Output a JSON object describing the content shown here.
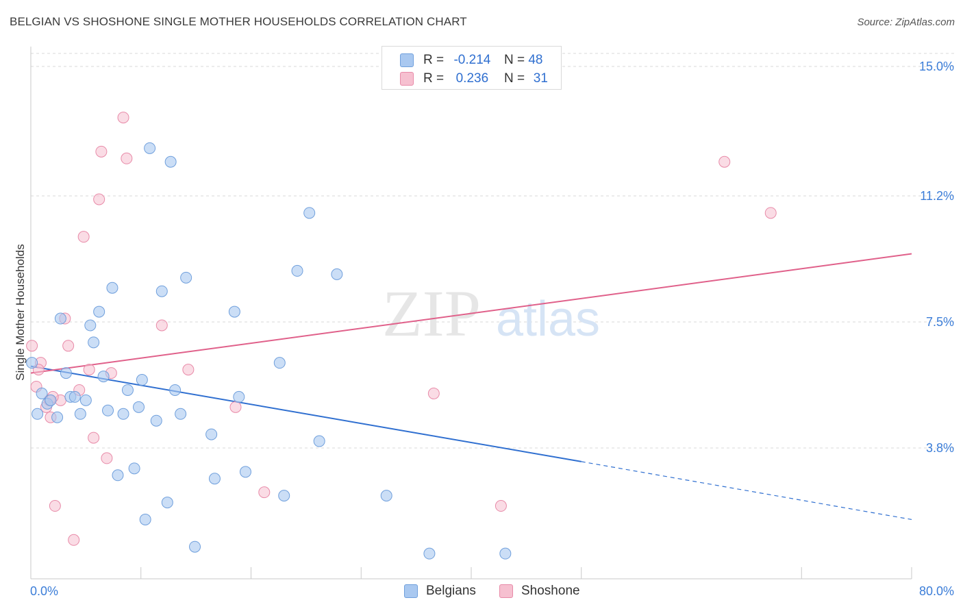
{
  "title": "BELGIAN VS SHOSHONE SINGLE MOTHER HOUSEHOLDS CORRELATION CHART",
  "source": "Source: ZipAtlas.com",
  "watermark": {
    "zip": "ZIP",
    "atlas": "atlas"
  },
  "legend": {
    "rows": [
      {
        "r_label": "R =",
        "r_value": "-0.214",
        "n_label": "N =",
        "n_value": "48"
      },
      {
        "r_label": "R =",
        "r_value": "0.236",
        "n_label": "N =",
        "n_value": "31"
      }
    ]
  },
  "bottom_legend": [
    "Belgians",
    "Shoshone"
  ],
  "colors": {
    "belgians_fill": "#a9c8f0",
    "belgians_stroke": "#6f9fdc",
    "belgians_line": "#2f6fd0",
    "shoshone_fill": "#f6c0d0",
    "shoshone_stroke": "#e88aa8",
    "shoshone_line": "#e0608a",
    "axis_label": "#3b7dd8",
    "grid": "#d8d8d8"
  },
  "chart_data": {
    "type": "scatter",
    "title": "BELGIAN VS SHOSHONE SINGLE MOTHER HOUSEHOLDS CORRELATION CHART",
    "xlabel": "",
    "ylabel": "Single Mother Households",
    "xlim": [
      0,
      80
    ],
    "ylim": [
      0,
      15.5
    ],
    "x_tick_labels": [
      {
        "value": 0,
        "label": "0.0%"
      },
      {
        "value": 80,
        "label": "80.0%"
      }
    ],
    "y_ticks": [
      {
        "value": 3.8,
        "label": "3.8%"
      },
      {
        "value": 7.5,
        "label": "7.5%"
      },
      {
        "value": 11.2,
        "label": "11.2%"
      },
      {
        "value": 15.0,
        "label": "15.0%"
      }
    ],
    "grid": "horizontal dashed",
    "series": [
      {
        "name": "Belgians",
        "points": [
          [
            0.1,
            6.3
          ],
          [
            0.6,
            4.8
          ],
          [
            1.0,
            5.4
          ],
          [
            1.5,
            5.1
          ],
          [
            1.8,
            5.2
          ],
          [
            2.4,
            4.7
          ],
          [
            2.7,
            7.6
          ],
          [
            3.2,
            6.0
          ],
          [
            3.6,
            5.3
          ],
          [
            4.0,
            5.3
          ],
          [
            4.5,
            4.8
          ],
          [
            5.0,
            5.2
          ],
          [
            5.4,
            7.4
          ],
          [
            5.7,
            6.9
          ],
          [
            6.2,
            7.8
          ],
          [
            6.6,
            5.9
          ],
          [
            7.0,
            4.9
          ],
          [
            7.4,
            8.5
          ],
          [
            7.9,
            3.0
          ],
          [
            8.4,
            4.8
          ],
          [
            8.8,
            5.5
          ],
          [
            9.4,
            3.2
          ],
          [
            9.8,
            5.0
          ],
          [
            10.1,
            5.8
          ],
          [
            10.4,
            1.7
          ],
          [
            10.8,
            12.6
          ],
          [
            11.4,
            4.6
          ],
          [
            11.9,
            8.4
          ],
          [
            12.4,
            2.2
          ],
          [
            12.7,
            12.2
          ],
          [
            13.1,
            5.5
          ],
          [
            13.6,
            4.8
          ],
          [
            14.1,
            8.8
          ],
          [
            14.9,
            0.9
          ],
          [
            16.4,
            4.2
          ],
          [
            16.7,
            2.9
          ],
          [
            18.5,
            7.8
          ],
          [
            18.9,
            5.3
          ],
          [
            19.5,
            3.1
          ],
          [
            22.6,
            6.3
          ],
          [
            23.0,
            2.4
          ],
          [
            24.2,
            9.0
          ],
          [
            25.3,
            10.7
          ],
          [
            26.2,
            4.0
          ],
          [
            27.8,
            8.9
          ],
          [
            32.3,
            2.4
          ],
          [
            36.2,
            0.7
          ],
          [
            43.1,
            0.7
          ]
        ],
        "trend": {
          "x0": 0,
          "y0": 6.2,
          "x1": 50,
          "y1": 3.4,
          "dash_to_x": 80,
          "dash_to_y": 1.7
        }
      },
      {
        "name": "Shoshone",
        "points": [
          [
            0.1,
            6.8
          ],
          [
            0.5,
            5.6
          ],
          [
            0.9,
            6.3
          ],
          [
            1.4,
            5.0
          ],
          [
            1.8,
            4.7
          ],
          [
            2.2,
            2.1
          ],
          [
            2.7,
            5.2
          ],
          [
            3.1,
            7.6
          ],
          [
            3.4,
            6.8
          ],
          [
            3.9,
            1.1
          ],
          [
            4.4,
            5.5
          ],
          [
            4.8,
            10.0
          ],
          [
            5.3,
            6.1
          ],
          [
            5.7,
            4.1
          ],
          [
            6.2,
            11.1
          ],
          [
            6.4,
            12.5
          ],
          [
            6.9,
            3.5
          ],
          [
            7.3,
            6.0
          ],
          [
            8.4,
            13.5
          ],
          [
            8.7,
            12.3
          ],
          [
            11.9,
            7.4
          ],
          [
            14.3,
            6.1
          ],
          [
            18.6,
            5.0
          ],
          [
            21.2,
            2.5
          ],
          [
            36.6,
            5.4
          ],
          [
            42.7,
            2.1
          ],
          [
            63.0,
            12.2
          ],
          [
            67.2,
            10.7
          ],
          [
            1.7,
            5.2
          ],
          [
            0.7,
            6.1
          ],
          [
            2.0,
            5.3
          ]
        ],
        "trend": {
          "x0": 0,
          "y0": 6.0,
          "x1": 80,
          "y1": 9.5
        }
      }
    ]
  }
}
